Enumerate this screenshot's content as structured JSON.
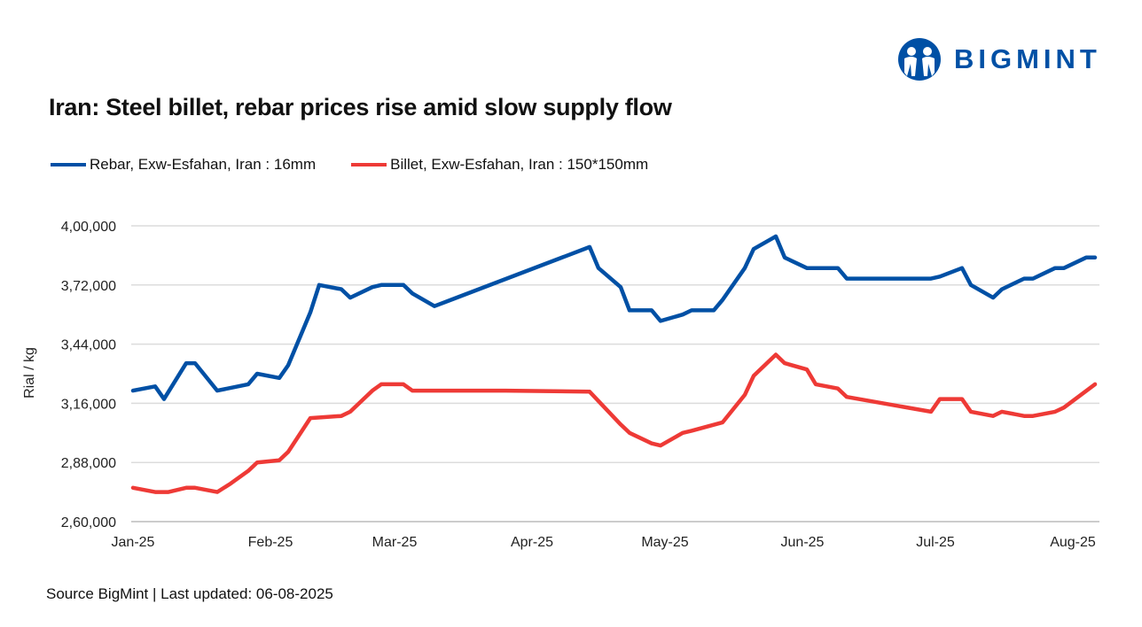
{
  "logo": {
    "text": "BIGMINT",
    "color": "#0050A5"
  },
  "title": "Iran: Steel billet, rebar prices rise amid slow supply flow",
  "source": "Source BigMint | Last updated: 06-08-2025",
  "chart_data": {
    "type": "line",
    "title": "Iran: Steel billet, rebar prices rise amid slow supply flow",
    "xlabel": "",
    "ylabel": "Rial / kg",
    "ylim": [
      260000,
      400000
    ],
    "xlim": [
      "2025-01-01",
      "2025-08-06"
    ],
    "grid": "horizontal",
    "legend_position": "top-left",
    "y_ticks": [
      {
        "value": 260000,
        "label": "2,60,000"
      },
      {
        "value": 288000,
        "label": "2,88,000"
      },
      {
        "value": 316000,
        "label": "3,16,000"
      },
      {
        "value": 344000,
        "label": "3,44,000"
      },
      {
        "value": 372000,
        "label": "3,72,000"
      },
      {
        "value": 400000,
        "label": "4,00,000"
      }
    ],
    "x_ticks": [
      {
        "date": "2025-01-01",
        "label": "Jan-25"
      },
      {
        "date": "2025-02-01",
        "label": "Feb-25"
      },
      {
        "date": "2025-03-01",
        "label": "Mar-25"
      },
      {
        "date": "2025-04-01",
        "label": "Apr-25"
      },
      {
        "date": "2025-05-01",
        "label": "May-25"
      },
      {
        "date": "2025-06-01",
        "label": "Jun-25"
      },
      {
        "date": "2025-07-01",
        "label": "Jul-25"
      },
      {
        "date": "2025-08-01",
        "label": "Aug-25"
      }
    ],
    "series": [
      {
        "name": "Rebar, Exw-Esfahan, Iran : 16mm",
        "color": "#0050A5",
        "points": [
          [
            "2025-01-01",
            322000
          ],
          [
            "2025-01-06",
            324000
          ],
          [
            "2025-01-08",
            318000
          ],
          [
            "2025-01-13",
            335000
          ],
          [
            "2025-01-15",
            335000
          ],
          [
            "2025-01-20",
            322000
          ],
          [
            "2025-01-27",
            325000
          ],
          [
            "2025-01-29",
            330000
          ],
          [
            "2025-02-03",
            328000
          ],
          [
            "2025-02-05",
            334000
          ],
          [
            "2025-02-10",
            359000
          ],
          [
            "2025-02-12",
            372000
          ],
          [
            "2025-02-17",
            370000
          ],
          [
            "2025-02-19",
            366000
          ],
          [
            "2025-02-24",
            371000
          ],
          [
            "2025-02-26",
            372000
          ],
          [
            "2025-03-03",
            372000
          ],
          [
            "2025-03-05",
            368000
          ],
          [
            "2025-03-10",
            362000
          ],
          [
            "2025-04-14",
            390000
          ],
          [
            "2025-04-16",
            380000
          ],
          [
            "2025-04-21",
            371000
          ],
          [
            "2025-04-23",
            360000
          ],
          [
            "2025-04-28",
            360000
          ],
          [
            "2025-04-30",
            355000
          ],
          [
            "2025-05-05",
            358000
          ],
          [
            "2025-05-07",
            360000
          ],
          [
            "2025-05-12",
            360000
          ],
          [
            "2025-05-14",
            365000
          ],
          [
            "2025-05-19",
            380000
          ],
          [
            "2025-05-21",
            389000
          ],
          [
            "2025-05-26",
            395000
          ],
          [
            "2025-05-28",
            385000
          ],
          [
            "2025-06-02",
            380000
          ],
          [
            "2025-06-09",
            380000
          ],
          [
            "2025-06-11",
            375000
          ],
          [
            "2025-06-30",
            375000
          ],
          [
            "2025-07-02",
            376000
          ],
          [
            "2025-07-07",
            380000
          ],
          [
            "2025-07-09",
            372000
          ],
          [
            "2025-07-14",
            366000
          ],
          [
            "2025-07-16",
            370000
          ],
          [
            "2025-07-21",
            375000
          ],
          [
            "2025-07-23",
            375000
          ],
          [
            "2025-07-28",
            380000
          ],
          [
            "2025-07-30",
            380000
          ],
          [
            "2025-08-04",
            385000
          ],
          [
            "2025-08-06",
            385000
          ]
        ]
      },
      {
        "name": "Billet, Exw-Esfahan, Iran : 150*150mm",
        "color": "#EE3A36",
        "points": [
          [
            "2025-01-01",
            276000
          ],
          [
            "2025-01-06",
            274000
          ],
          [
            "2025-01-09",
            274000
          ],
          [
            "2025-01-13",
            276000
          ],
          [
            "2025-01-15",
            276000
          ],
          [
            "2025-01-20",
            274000
          ],
          [
            "2025-01-23",
            278000
          ],
          [
            "2025-01-27",
            284000
          ],
          [
            "2025-01-29",
            288000
          ],
          [
            "2025-02-03",
            289000
          ],
          [
            "2025-02-05",
            293000
          ],
          [
            "2025-02-10",
            309000
          ],
          [
            "2025-02-17",
            310000
          ],
          [
            "2025-02-19",
            312000
          ],
          [
            "2025-02-24",
            322000
          ],
          [
            "2025-02-26",
            325000
          ],
          [
            "2025-03-03",
            325000
          ],
          [
            "2025-03-05",
            322000
          ],
          [
            "2025-03-10",
            322000
          ],
          [
            "2025-03-26",
            322000
          ],
          [
            "2025-04-14",
            321500
          ],
          [
            "2025-04-21",
            306000
          ],
          [
            "2025-04-23",
            302000
          ],
          [
            "2025-04-28",
            297000
          ],
          [
            "2025-04-30",
            296000
          ],
          [
            "2025-05-05",
            302000
          ],
          [
            "2025-05-07",
            303000
          ],
          [
            "2025-05-14",
            307000
          ],
          [
            "2025-05-19",
            320000
          ],
          [
            "2025-05-21",
            329000
          ],
          [
            "2025-05-26",
            339000
          ],
          [
            "2025-05-28",
            335000
          ],
          [
            "2025-06-02",
            332000
          ],
          [
            "2025-06-04",
            325000
          ],
          [
            "2025-06-09",
            323000
          ],
          [
            "2025-06-11",
            319000
          ],
          [
            "2025-06-30",
            312000
          ],
          [
            "2025-07-02",
            318000
          ],
          [
            "2025-07-07",
            318000
          ],
          [
            "2025-07-09",
            312000
          ],
          [
            "2025-07-14",
            310000
          ],
          [
            "2025-07-16",
            312000
          ],
          [
            "2025-07-21",
            310000
          ],
          [
            "2025-07-23",
            310000
          ],
          [
            "2025-07-28",
            312000
          ],
          [
            "2025-07-30",
            314000
          ],
          [
            "2025-08-06",
            325000
          ]
        ]
      }
    ]
  }
}
